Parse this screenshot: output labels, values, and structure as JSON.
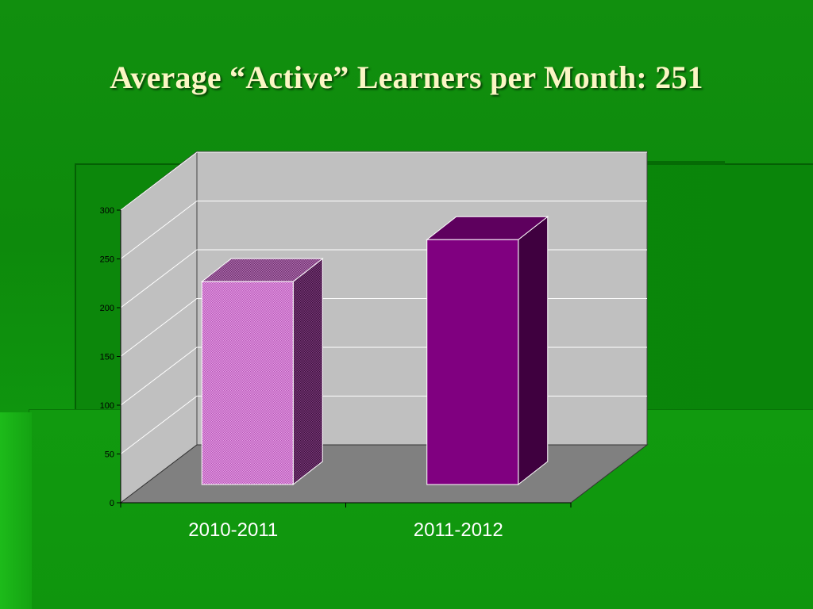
{
  "slide": {
    "title": "Average “Active” Learners per Month: 251"
  },
  "chart_data": {
    "type": "bar",
    "three_d": true,
    "categories": [
      "2010-2011",
      "2011-2012"
    ],
    "values": [
      208,
      251
    ],
    "ylim": [
      0,
      300
    ],
    "yticks": [
      "0",
      "50",
      "100",
      "150",
      "200",
      "250",
      "300"
    ],
    "grid": true,
    "bar_colors": [
      "#c56fc5",
      "#800080"
    ],
    "bar_styles": [
      "pattern",
      "solid"
    ]
  }
}
